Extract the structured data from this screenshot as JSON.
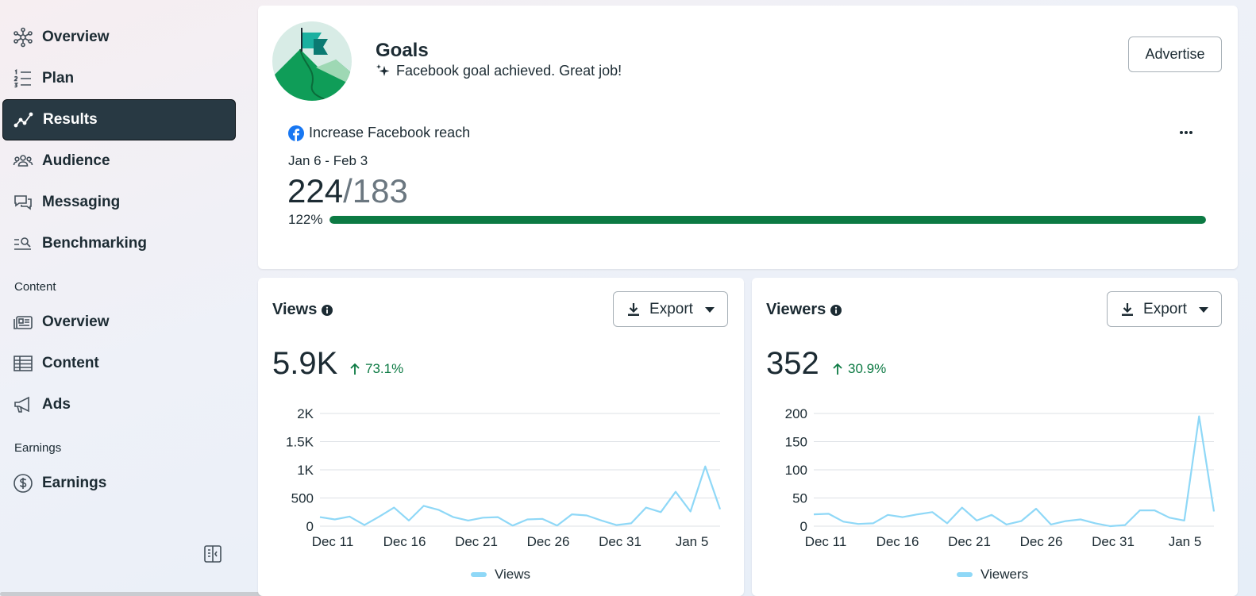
{
  "sidebar": {
    "items": [
      {
        "label": "Overview",
        "icon": "network-icon"
      },
      {
        "label": "Plan",
        "icon": "numbered-list-icon"
      },
      {
        "label": "Results",
        "icon": "trend-line-icon",
        "active": true
      },
      {
        "label": "Audience",
        "icon": "people-icon"
      },
      {
        "label": "Messaging",
        "icon": "chat-bubbles-icon"
      },
      {
        "label": "Benchmarking",
        "icon": "search-list-icon"
      }
    ],
    "content_section": "Content",
    "content_items": [
      {
        "label": "Overview",
        "icon": "content-card-icon"
      },
      {
        "label": "Content",
        "icon": "table-icon"
      },
      {
        "label": "Ads",
        "icon": "megaphone-icon"
      }
    ],
    "earnings_section": "Earnings",
    "earnings_items": [
      {
        "label": "Earnings",
        "icon": "dollar-circle-icon"
      }
    ]
  },
  "goals": {
    "title": "Goals",
    "subtitle": "Facebook goal achieved. Great job!",
    "advertise_label": "Advertise",
    "goal_name": "Increase Facebook reach",
    "date_range": "Jan 6 - Feb 3",
    "current": "224",
    "target": "/183",
    "percent_label": "122%",
    "progress": 1.0
  },
  "views": {
    "title": "Views",
    "export_label": "Export",
    "value": "5.9K",
    "change": "73.1%",
    "legend": "Views"
  },
  "viewers": {
    "title": "Viewers",
    "export_label": "Export",
    "value": "352",
    "change": "30.9%",
    "legend": "Viewers"
  },
  "colors": {
    "accent_green": "#0c7a43",
    "line_blue": "#8fd8f7",
    "active_nav": "#283943"
  },
  "chart_data": [
    {
      "type": "line",
      "title": "Views",
      "x_tick_labels": [
        "Dec 11",
        "Dec 16",
        "Dec 21",
        "Dec 26",
        "Dec 31",
        "Jan 5"
      ],
      "y_tick_labels": [
        "0",
        "500",
        "1K",
        "1.5K",
        "2K"
      ],
      "y_ticks": [
        0,
        500,
        1000,
        1500,
        2000
      ],
      "ylim": [
        0,
        2000
      ],
      "start_day_offset": 0,
      "series": [
        {
          "name": "Views",
          "values": [
            160,
            120,
            170,
            20,
            170,
            330,
            100,
            360,
            290,
            160,
            100,
            150,
            160,
            10,
            120,
            130,
            10,
            210,
            190,
            100,
            20,
            50,
            330,
            250,
            610,
            260,
            1060,
            300
          ]
        }
      ]
    },
    {
      "type": "line",
      "title": "Viewers",
      "x_tick_labels": [
        "Dec 11",
        "Dec 16",
        "Dec 21",
        "Dec 26",
        "Dec 31",
        "Jan 5"
      ],
      "y_tick_labels": [
        "0",
        "50",
        "100",
        "150",
        "200"
      ],
      "y_ticks": [
        0,
        50,
        100,
        150,
        200
      ],
      "ylim": [
        0,
        200
      ],
      "start_day_offset": 0,
      "series": [
        {
          "name": "Viewers",
          "values": [
            21,
            22,
            8,
            4,
            5,
            20,
            16,
            21,
            25,
            5,
            33,
            10,
            20,
            3,
            9,
            31,
            3,
            9,
            12,
            5,
            0,
            2,
            28,
            28,
            15,
            10,
            195,
            26
          ]
        }
      ]
    }
  ]
}
